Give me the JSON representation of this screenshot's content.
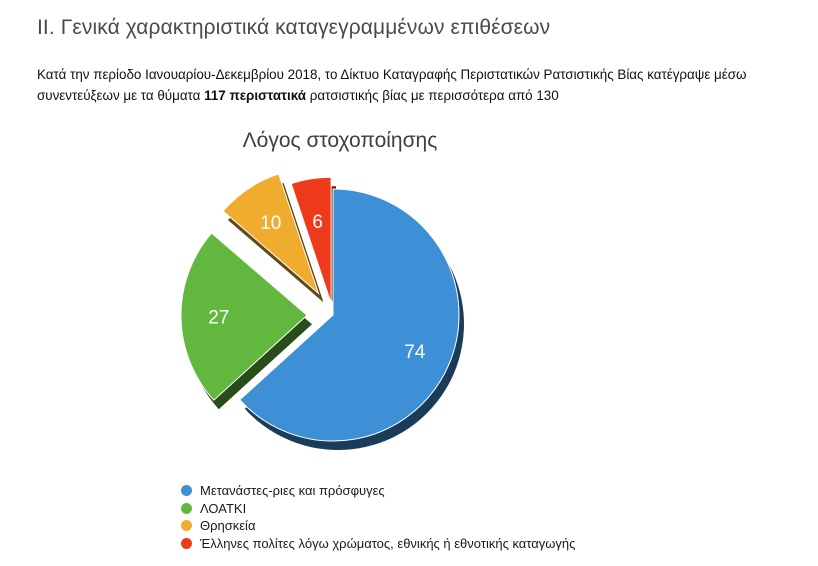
{
  "heading": "II. Γενικά χαρακτηριστικά καταγεγραμμένων επιθέσεων",
  "intro": {
    "part1": "Κατά την περίοδο Ιανουαρίου-Δεκεμβρίου 2018, το Δίκτυο Καταγραφής Περιστατικών Ρατσιστικής Βίας κατέγραψε μέσω συνεντεύξεων με τα θύματα ",
    "bold": "117 περιστατικά",
    "part2": " ρατσιστικής βίας με περισσότερα από 130"
  },
  "chart_data": {
    "type": "pie",
    "title": "Λόγος στοχοποίησης",
    "categories": [
      "Μετανάστες-ριες και πρόσφυγες",
      "ΛΟΑΤΚΙ",
      "Θρησκεία",
      "Έλληνες πολίτες λόγω χρώματος, εθνικής ή εθνοτικής καταγωγής"
    ],
    "values": [
      74,
      27,
      10,
      6
    ],
    "data_labels": [
      "74",
      "27",
      "10",
      "6"
    ],
    "colors": [
      "#3d8fd6",
      "#62b83f",
      "#f0ac2e",
      "#ee3a1b"
    ],
    "legend_position": "bottom-left"
  }
}
